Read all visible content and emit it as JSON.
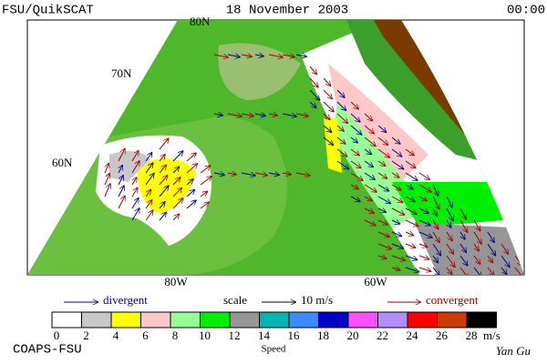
{
  "header": {
    "left": "FSU/QuikSCAT",
    "date": "18 November 2003",
    "time": "00:00"
  },
  "map": {
    "lat_labels": [
      "80N",
      "70N",
      "60N"
    ],
    "lon_labels": [
      "80W",
      "60W"
    ]
  },
  "legend": {
    "divergent": "divergent",
    "scale": "scale",
    "scale_value": "10 m/s",
    "convergent": "convergent"
  },
  "colorbar": {
    "ticks": [
      "0",
      "2",
      "4",
      "6",
      "8",
      "10",
      "12",
      "14",
      "16",
      "18",
      "20",
      "22",
      "24",
      "26",
      "28"
    ],
    "unit": "m/s",
    "label": "Speed",
    "colors": [
      "#ffffff",
      "#c8c8c8",
      "#ffff00",
      "#ffc8c8",
      "#96ff96",
      "#00ee00",
      "#969696",
      "#00b4b4",
      "#3c8cff",
      "#0000c8",
      "#ff50ff",
      "#b48cff",
      "#ff0000",
      "#c83c00",
      "#000000"
    ]
  },
  "footer": {
    "left": "COAPS-FSU",
    "right": "Yan Gu"
  }
}
